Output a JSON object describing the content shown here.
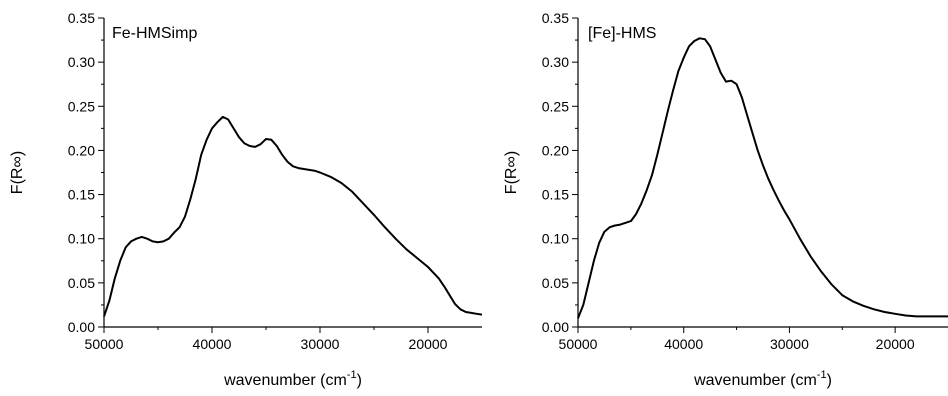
{
  "chart_data": [
    {
      "type": "line",
      "panel_label": "Fe-HMSimp",
      "xlabel": "wavenumber (cm",
      "xlabel_sup": "-1",
      "xlabel_close": ")",
      "ylabel": "F(R∞)",
      "xlim": [
        50000,
        15000
      ],
      "ylim": [
        0,
        0.35
      ],
      "x_ticks": [
        50000,
        40000,
        30000,
        20000
      ],
      "x_tick_labels": [
        "50000",
        "40000",
        "30000",
        "20000"
      ],
      "y_ticks": [
        0,
        0.05,
        0.1,
        0.15,
        0.2,
        0.25,
        0.3,
        0.35
      ],
      "y_tick_labels": [
        "0.00",
        "0.05",
        "0.10",
        "0.15",
        "0.20",
        "0.25",
        "0.30",
        "0.35"
      ],
      "x_reversed": true,
      "grid": false,
      "color": "#000000",
      "series": [
        {
          "x": [
            50000,
            49500,
            49000,
            48500,
            48000,
            47500,
            47000,
            46500,
            46000,
            45500,
            45000,
            44500,
            44000,
            43500,
            43000,
            42500,
            42000,
            41500,
            41000,
            40500,
            40000,
            39500,
            39000,
            38500,
            38000,
            37500,
            37000,
            36500,
            36000,
            35500,
            35000,
            34500,
            34000,
            33500,
            33000,
            32500,
            32000,
            31500,
            31000,
            30500,
            30000,
            29000,
            28000,
            27000,
            26000,
            25000,
            24000,
            23000,
            22000,
            21000,
            20000,
            19000,
            18500,
            18000,
            17500,
            17000,
            16500,
            16000,
            15500,
            15000
          ],
          "y": [
            0.012,
            0.03,
            0.055,
            0.075,
            0.09,
            0.097,
            0.1,
            0.102,
            0.1,
            0.097,
            0.096,
            0.097,
            0.1,
            0.107,
            0.113,
            0.125,
            0.145,
            0.168,
            0.195,
            0.212,
            0.225,
            0.232,
            0.238,
            0.235,
            0.225,
            0.215,
            0.208,
            0.205,
            0.204,
            0.207,
            0.213,
            0.212,
            0.205,
            0.195,
            0.187,
            0.182,
            0.18,
            0.179,
            0.178,
            0.177,
            0.175,
            0.17,
            0.163,
            0.153,
            0.14,
            0.127,
            0.113,
            0.1,
            0.088,
            0.078,
            0.068,
            0.055,
            0.046,
            0.036,
            0.026,
            0.02,
            0.017,
            0.016,
            0.015,
            0.014
          ]
        }
      ]
    },
    {
      "type": "line",
      "panel_label": "[Fe]-HMS",
      "xlabel": "wavenumber (cm",
      "xlabel_sup": "-1",
      "xlabel_close": ")",
      "ylabel": "F(R∞)",
      "xlim": [
        50000,
        15000
      ],
      "ylim": [
        0,
        0.35
      ],
      "x_ticks": [
        50000,
        40000,
        30000,
        20000
      ],
      "x_tick_labels": [
        "50000",
        "40000",
        "30000",
        "20000"
      ],
      "y_ticks": [
        0,
        0.05,
        0.1,
        0.15,
        0.2,
        0.25,
        0.3,
        0.35
      ],
      "y_tick_labels": [
        "0.00",
        "0.05",
        "0.10",
        "0.15",
        "0.20",
        "0.25",
        "0.30",
        "0.35"
      ],
      "x_reversed": true,
      "grid": false,
      "color": "#000000",
      "series": [
        {
          "x": [
            50000,
            49500,
            49000,
            48500,
            48000,
            47500,
            47000,
            46500,
            46000,
            45500,
            45000,
            44500,
            44000,
            43500,
            43000,
            42500,
            42000,
            41500,
            41000,
            40500,
            40000,
            39500,
            39000,
            38500,
            38000,
            37500,
            37000,
            36500,
            36000,
            35500,
            35000,
            34500,
            34000,
            33500,
            33000,
            32500,
            32000,
            31500,
            31000,
            30500,
            30000,
            29000,
            28000,
            27000,
            26000,
            25000,
            24000,
            23000,
            22000,
            21000,
            20000,
            19000,
            18000,
            17000,
            16000,
            15000
          ],
          "y": [
            0.01,
            0.025,
            0.05,
            0.075,
            0.095,
            0.108,
            0.113,
            0.115,
            0.116,
            0.118,
            0.12,
            0.128,
            0.14,
            0.155,
            0.172,
            0.195,
            0.22,
            0.245,
            0.268,
            0.29,
            0.305,
            0.318,
            0.324,
            0.327,
            0.326,
            0.318,
            0.303,
            0.288,
            0.278,
            0.279,
            0.275,
            0.26,
            0.24,
            0.22,
            0.2,
            0.183,
            0.168,
            0.155,
            0.143,
            0.132,
            0.122,
            0.1,
            0.08,
            0.063,
            0.048,
            0.036,
            0.029,
            0.024,
            0.02,
            0.017,
            0.015,
            0.013,
            0.012,
            0.012,
            0.012,
            0.012
          ]
        }
      ]
    }
  ]
}
